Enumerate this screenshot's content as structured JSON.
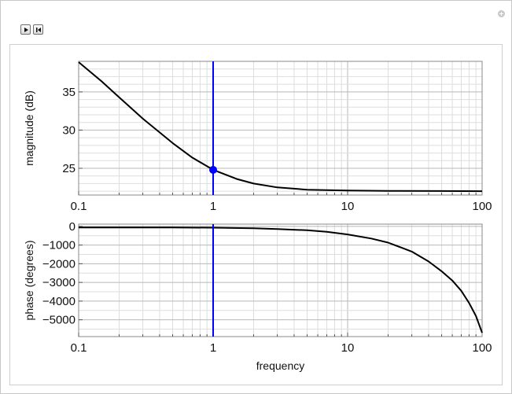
{
  "icons": {
    "play": "play-icon",
    "reset": "skip-to-start-icon",
    "options": "plus-circle-icon"
  },
  "chart_data": [
    {
      "type": "line",
      "xscale": "log",
      "xlim": [
        0.1,
        100
      ],
      "ylim": [
        21.5,
        39
      ],
      "xticks": [
        0.1,
        1,
        10,
        100
      ],
      "xtick_labels": [
        "0.1",
        "1",
        "10",
        "100"
      ],
      "yticks": [
        25,
        30,
        35
      ],
      "ytick_labels": [
        "25",
        "30",
        "35"
      ],
      "xlabel": "",
      "ylabel": "magnitude (dB)",
      "grid": true,
      "series": [
        {
          "color": "#000000",
          "x": [
            0.1,
            0.15,
            0.2,
            0.3,
            0.5,
            0.7,
            1,
            1.5,
            2,
            3,
            5,
            7,
            10,
            20,
            50,
            100
          ],
          "y": [
            38.9,
            36.3,
            34.3,
            31.5,
            28.3,
            26.4,
            24.8,
            23.6,
            23.0,
            22.5,
            22.2,
            22.14,
            22.1,
            22.05,
            22.02,
            22.0
          ]
        }
      ],
      "marker": {
        "x": 1,
        "y": 24.8,
        "color": "#0000ff"
      },
      "vline": {
        "x": 1,
        "color": "#0000ff"
      }
    },
    {
      "type": "line",
      "xscale": "log",
      "xlim": [
        0.1,
        100
      ],
      "ylim": [
        -5900,
        120
      ],
      "xticks": [
        0.1,
        1,
        10,
        100
      ],
      "xtick_labels": [
        "0.1",
        "1",
        "10",
        "100"
      ],
      "yticks": [
        0,
        -1000,
        -2000,
        -3000,
        -4000,
        -5000
      ],
      "ytick_labels": [
        "0",
        "−1000",
        "−2000",
        "−3000",
        "−4000",
        "−5000"
      ],
      "xlabel": "frequency",
      "ylabel": "phase (degrees)",
      "grid": true,
      "series": [
        {
          "color": "#000000",
          "x": [
            0.1,
            0.2,
            0.5,
            1,
            2,
            3,
            5,
            7,
            10,
            15,
            20,
            30,
            40,
            50,
            60,
            70,
            80,
            90,
            100
          ],
          "y": [
            -60,
            -58,
            -60,
            -70,
            -100,
            -140,
            -210,
            -290,
            -430,
            -650,
            -870,
            -1350,
            -1880,
            -2400,
            -2900,
            -3450,
            -4100,
            -4800,
            -5700
          ]
        }
      ],
      "vline": {
        "x": 1,
        "color": "#0000ff"
      }
    }
  ]
}
